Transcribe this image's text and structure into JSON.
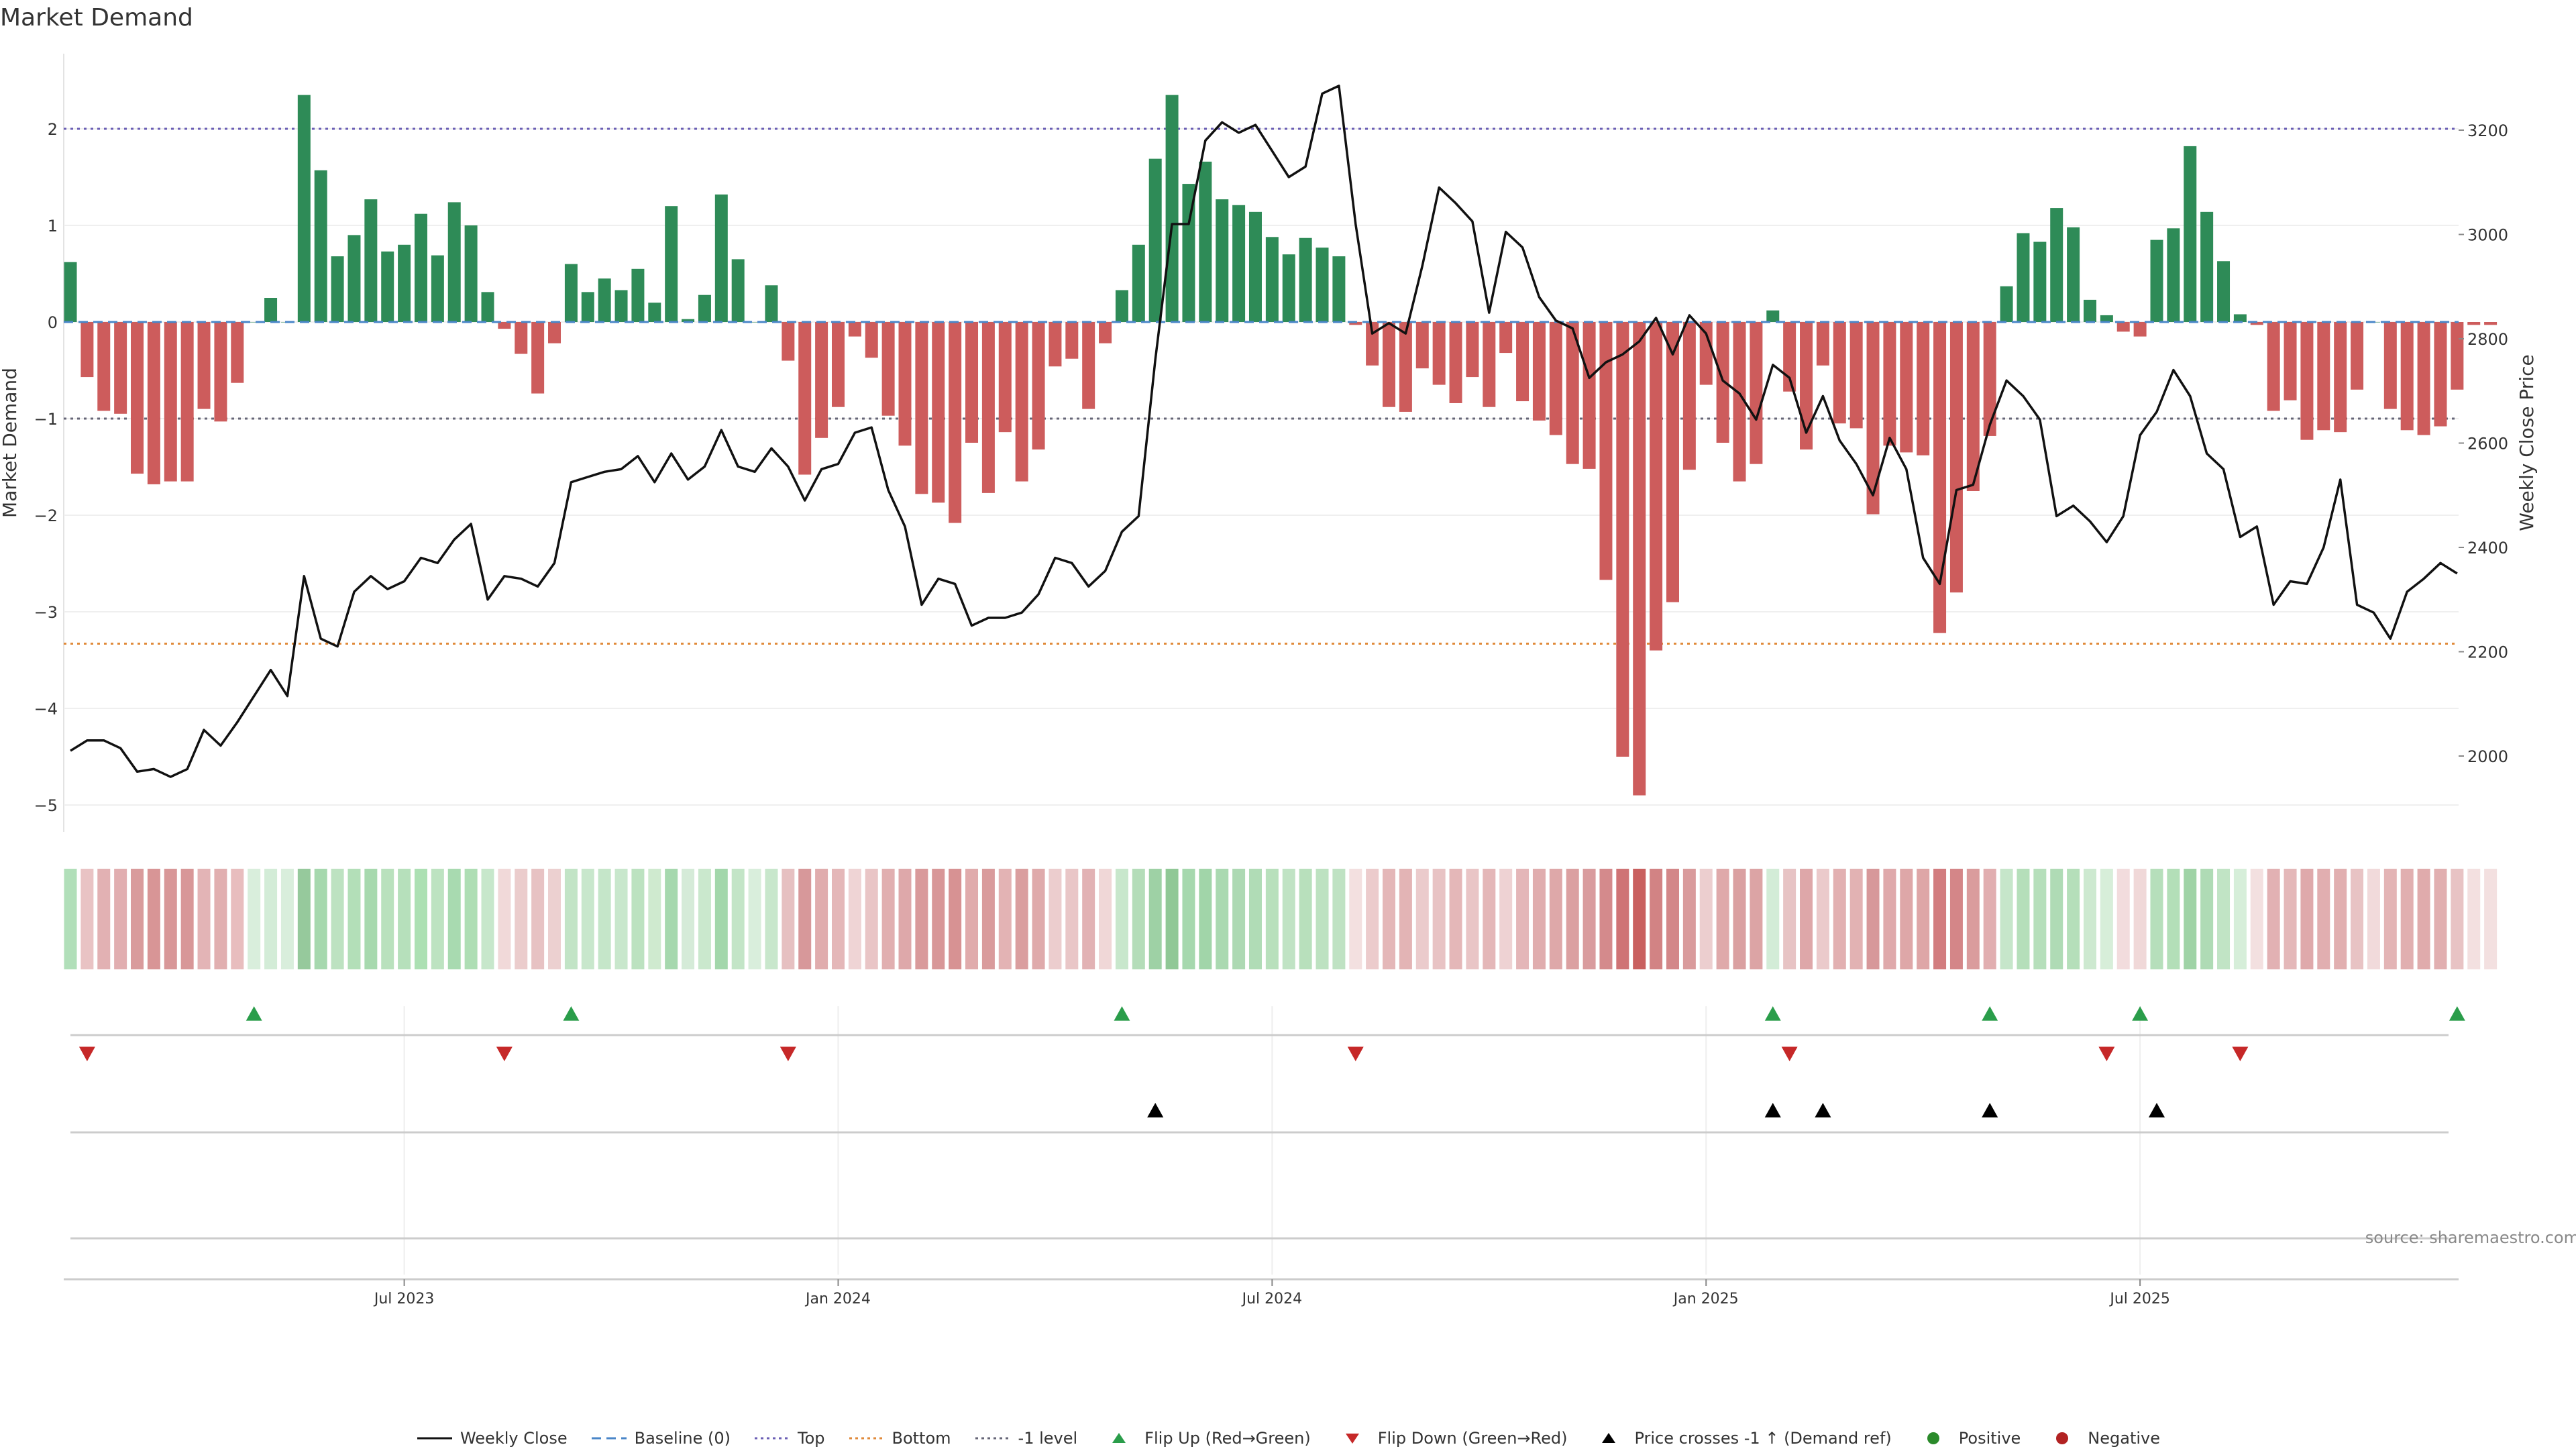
{
  "chart_data": {
    "type": "bar",
    "title": "Market Demand",
    "ylabel": "Market Demand",
    "y2label": "Weekly Close Price",
    "ylim": [
      -5.3,
      2.7
    ],
    "y2lim": [
      1900,
      3350
    ],
    "yticks": [
      2,
      1,
      0,
      -1,
      -2,
      -3,
      -4,
      -5
    ],
    "yticks_display": [
      "2",
      "1",
      "0",
      "−1",
      "−2",
      "−3",
      "−4",
      "−5"
    ],
    "y2ticks": [
      "3200",
      "3000",
      "2800",
      "2600",
      "2400",
      "2200",
      "2000"
    ],
    "y2tick_values": [
      3200,
      3000,
      2800,
      2600,
      2400,
      2200,
      2000
    ],
    "date_ticks": [
      {
        "label": "Jul 2023",
        "week": 20
      },
      {
        "label": "Jan 2024",
        "week": 46
      },
      {
        "label": "Jul 2024",
        "week": 72
      },
      {
        "label": "Jan 2025",
        "week": 98
      },
      {
        "label": "Jul 2025",
        "week": 124
      }
    ],
    "reference_lines": [
      {
        "name": "Top",
        "value": 2.0,
        "color": "#6b5fb5"
      },
      {
        "name": "-1 level",
        "value": -1.0,
        "color": "#666677"
      },
      {
        "name": "Bottom",
        "value": -3.33,
        "color": "#e08a3a"
      }
    ],
    "colors": {
      "positive": "#2e8b57",
      "negative": "#cd5c5c",
      "price": "#111111",
      "baseline": "#4a86c8",
      "flip_up": "#2a9d4a",
      "flip_down": "#c62828",
      "cross": "#000000"
    },
    "series": [
      {
        "name": "Market Demand",
        "values": [
          0.62,
          -0.57,
          -0.92,
          -0.95,
          -1.57,
          -1.68,
          -1.65,
          -1.65,
          -0.9,
          -1.03,
          -0.63,
          0,
          0.25,
          0,
          2.35,
          1.57,
          0.68,
          0.9,
          1.27,
          0.73,
          0.8,
          1.12,
          0.69,
          1.24,
          1.0,
          0.31,
          -0.07,
          -0.33,
          -0.74,
          -0.22,
          0.6,
          0.31,
          0.45,
          0.33,
          0.55,
          0.2,
          1.2,
          0.03,
          0.28,
          1.32,
          0.65,
          0,
          0.38,
          -0.4,
          -1.58,
          -1.2,
          -0.88,
          -0.15,
          -0.37,
          -0.97,
          -1.28,
          -1.78,
          -1.87,
          -2.08,
          -1.25,
          -1.77,
          -1.14,
          -1.65,
          -1.32,
          -0.46,
          -0.38,
          -0.9,
          -0.22,
          0.33,
          0.8,
          1.69,
          2.35,
          1.43,
          1.66,
          1.27,
          1.21,
          1.14,
          0.88,
          0.7,
          0.87,
          0.77,
          0.68,
          -0.03,
          -0.45,
          -0.88,
          -0.93,
          -0.48,
          -0.65,
          -0.84,
          -0.57,
          -0.88,
          -0.32,
          -0.82,
          -1.02,
          -1.17,
          -1.47,
          -1.52,
          -2.67,
          -4.5,
          -4.9,
          -3.4,
          -2.9,
          -1.53,
          -0.65,
          -1.25,
          -1.65,
          -1.47,
          0.12,
          -0.72,
          -1.32,
          -0.45,
          -1.05,
          -1.1,
          -1.99,
          -1.28,
          -1.35,
          -1.38,
          -3.22,
          -2.8,
          -1.75,
          -1.18,
          0.37,
          0.92,
          0.83,
          1.18,
          0.98,
          0.23,
          0.07,
          -0.1,
          -0.15,
          0.85,
          0.97,
          1.82,
          1.14,
          0.63,
          0.08,
          -0.03,
          -0.92,
          -0.81,
          -1.22,
          -1.12,
          -1.14,
          -0.7,
          0,
          -0.9,
          -1.12,
          -1.17,
          -1.08,
          -0.7,
          -0.03,
          -0.03
        ]
      },
      {
        "name": "Weekly Close",
        "values": [
          2010,
          2030,
          2030,
          2015,
          1970,
          1975,
          1960,
          1975,
          2050,
          2020,
          2065,
          2115,
          2165,
          2115,
          2345,
          2225,
          2210,
          2315,
          2345,
          2320,
          2335,
          2380,
          2370,
          2415,
          2445,
          2300,
          2345,
          2340,
          2325,
          2370,
          2525,
          2535,
          2545,
          2550,
          2575,
          2525,
          2580,
          2530,
          2555,
          2625,
          2555,
          2545,
          2590,
          2555,
          2490,
          2550,
          2560,
          2620,
          2630,
          2510,
          2440,
          2290,
          2340,
          2330,
          2250,
          2265,
          2265,
          2275,
          2310,
          2380,
          2370,
          2325,
          2355,
          2430,
          2460,
          2760,
          3020,
          3020,
          3180,
          3215,
          3195,
          3210,
          3160,
          3110,
          3130,
          3270,
          3285,
          3020,
          2810,
          2830,
          2810,
          2940,
          3090,
          3060,
          3025,
          2850,
          3005,
          2975,
          2880,
          2835,
          2820,
          2725,
          2755,
          2770,
          2795,
          2840,
          2770,
          2845,
          2810,
          2720,
          2695,
          2645,
          2750,
          2725,
          2620,
          2690,
          2605,
          2560,
          2500,
          2610,
          2550,
          2380,
          2330,
          2510,
          2520,
          2635,
          2720,
          2690,
          2645,
          2460,
          2480,
          2450,
          2410,
          2460,
          2615,
          2660,
          2740,
          2690,
          2580,
          2550,
          2420,
          2440,
          2290,
          2335,
          2330,
          2400,
          2530,
          2290,
          2275,
          2225,
          2315,
          2340,
          2370,
          2350
        ]
      }
    ],
    "intensity_colors": [
      "#b1dfb9",
      "#e9c3c4",
      "#e2b1b3",
      "#e1aeb0",
      "#d99b9c",
      "#d89596",
      "#d89798",
      "#d89798",
      "#e3b4b6",
      "#e1afb0",
      "#e8bdbe",
      "#d9eedc",
      "#d3ecd7",
      "#d9eedc",
      "#96c99c",
      "#a6d8ae",
      "#bde2c1",
      "#b3dfb8",
      "#a7d9ae",
      "#b9e1bd",
      "#b6e0bb",
      "#ace0b3",
      "#bde3c1",
      "#a8dab0",
      "#aedeb4",
      "#c7e7cb",
      "#f1d9d9",
      "#ebcccc",
      "#e7c2c3",
      "#ecd0d0",
      "#c2e4c6",
      "#c8e7cc",
      "#c5e6c9",
      "#c8e7cc",
      "#bce2c0",
      "#cfeacf",
      "#a6d8ae",
      "#d5ebd8",
      "#cae8cd",
      "#a3d7ab",
      "#c3e5c7",
      "#d9eedc",
      "#c8e7cc",
      "#e6c0c1",
      "#d7989a",
      "#e0acad",
      "#e4b7b8",
      "#efd4d5",
      "#e9c5c6",
      "#e1afb0",
      "#dea8aa",
      "#d99a9b",
      "#d89798",
      "#d79293",
      "#e0abac",
      "#d99b9c",
      "#e3b3b4",
      "#da9e9f",
      "#dfaaab",
      "#eccdce",
      "#e9c6c7",
      "#e2b2b4",
      "#f0d7d7",
      "#c8e7cc",
      "#b4ddb9",
      "#9ed1a5",
      "#90c896",
      "#a6d8ae",
      "#a1d5a9",
      "#aad9b1",
      "#add9b3",
      "#b0dcb6",
      "#b8e0bc",
      "#c0e3c4",
      "#b8e0bc",
      "#bde2c1",
      "#bfe2c3",
      "#f3e0e0",
      "#eccbcc",
      "#e4b7b8",
      "#e3b4b5",
      "#ebcbcc",
      "#e8c3c4",
      "#e4b7b8",
      "#e9c5c6",
      "#e4b7b8",
      "#eed2d3",
      "#e4b6b8",
      "#e0adae",
      "#dea8a9",
      "#dba0a1",
      "#d99c9e",
      "#d48a8c",
      "#cf7375",
      "#c9605f",
      "#d28384",
      "#d38789",
      "#d99b9c",
      "#eccecf",
      "#dfa9aa",
      "#daa0a1",
      "#dca4a5",
      "#d3ecd7",
      "#e7c3c4",
      "#dea7a9",
      "#ebcacb",
      "#e2b0b1",
      "#e2b2b3",
      "#d7989a",
      "#dfa9ab",
      "#dea7a8",
      "#dea6a7",
      "#d27d7f",
      "#d48688",
      "#da9c9d",
      "#e1aeb0",
      "#c6e6ca",
      "#b5dfba",
      "#b6dfbb",
      "#afdbb5",
      "#b5dfba",
      "#cde9d0",
      "#d7eed9",
      "#f2dcdd",
      "#f0d8d8",
      "#b6dfbb",
      "#b3dfb8",
      "#9fd3a6",
      "#afdbb5",
      "#c1e4c5",
      "#d6eed9",
      "#f3e0e0",
      "#e2b1b3",
      "#e4b8b9",
      "#dfa9ab",
      "#e1aeb0",
      "#e1afb0",
      "#e8c3c4",
      "#f1dadb",
      "#e3b4b5",
      "#e1afb0",
      "#e0abac",
      "#e1afb0",
      "#e8c3c4",
      "#f3e0e0",
      "#f3e0e0"
    ],
    "flip_up_weeks": [
      11,
      30,
      63,
      102,
      115,
      124,
      143
    ],
    "flip_down_weeks": [
      1,
      26,
      43,
      77,
      103,
      122,
      130
    ],
    "price_cross_weeks": [
      65,
      102,
      105,
      115,
      125
    ],
    "source_note": "source: sharemaestro.com"
  },
  "legend": [
    {
      "label": "Weekly Close",
      "symbol": "line",
      "color": "#111111"
    },
    {
      "label": "Baseline (0)",
      "symbol": "dash",
      "color": "#4a86c8"
    },
    {
      "label": "Top",
      "symbol": "dot",
      "color": "#6b5fb5"
    },
    {
      "label": "Bottom",
      "symbol": "dot",
      "color": "#e08a3a"
    },
    {
      "label": "-1 level",
      "symbol": "dot",
      "color": "#666677"
    },
    {
      "label": "Flip Up (Red→Green)",
      "symbol": "tri-up",
      "color": "#2a9d4a"
    },
    {
      "label": "Flip Down (Green→Red)",
      "symbol": "tri-down",
      "color": "#c62828"
    },
    {
      "label": "Price crosses -1 ↑ (Demand ref)",
      "symbol": "tri-up",
      "color": "#000000"
    },
    {
      "label": "Positive",
      "symbol": "circle",
      "color": "#2a8a2a"
    },
    {
      "label": "Negative",
      "symbol": "circle",
      "color": "#b22222"
    }
  ]
}
